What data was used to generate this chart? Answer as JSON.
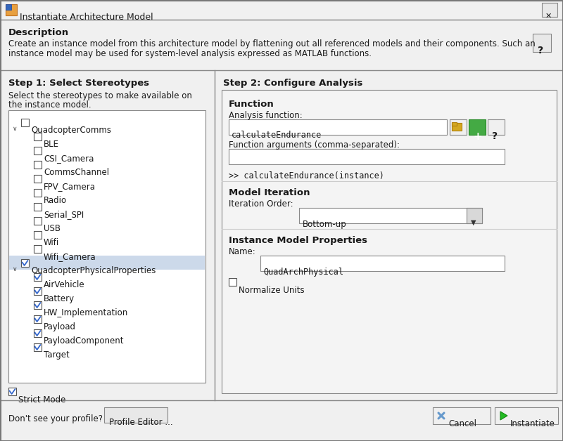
{
  "title": "Instantiate Architecture Model",
  "bg_outer": "#d4d0c8",
  "bg_dialog": "#f0f0f0",
  "bg_white": "#ffffff",
  "bg_titlebar": "#f0f0f0",
  "bg_section": "#ececec",
  "bg_highlight": "#ccd9ea",
  "border_dark": "#808080",
  "border_mid": "#a0a0a0",
  "border_light": "#c8c8c8",
  "text_black": "#000000",
  "text_dark": "#1a1a1a",
  "description_line1": "Create an instance model from this architecture model by flattening out all referenced models and their components. Such an",
  "description_line2": "instance model may be used for system-level analysis expressed as MATLAB functions.",
  "step1_title": "Step 1: Select Stereotypes",
  "step1_subtitle1": "Select the stereotypes to make available on",
  "step1_subtitle2": "the instance model.",
  "step2_title": "Step 2: Configure Analysis",
  "fn_section": "Function",
  "fn_label": "Analysis function:",
  "fn_value": "calculateEndurance",
  "fn_args_label": "Function arguments (comma-separated):",
  "fn_call": ">> calculateEndurance(instance)",
  "iter_section": "Model Iteration",
  "iter_label": "Iteration Order:",
  "iter_value": "Bottom-up",
  "inst_section": "Instance Model Properties",
  "name_label": "Name:",
  "name_value": "QuadArchPhysical",
  "normalize_label": "Normalize Units",
  "strict_label": "Strict Mode",
  "dont_see": "Don't see your profile?",
  "profile_btn": "Profile Editor ...",
  "cancel_btn": "Cancel",
  "instantiate_btn": "Instantiate",
  "tree_items": [
    {
      "level": 0,
      "text": "QuadcopterComms",
      "checked": false,
      "expanded": true,
      "highlighted": false
    },
    {
      "level": 1,
      "text": "BLE",
      "checked": false,
      "highlighted": false
    },
    {
      "level": 1,
      "text": "CSI_Camera",
      "checked": false,
      "highlighted": false
    },
    {
      "level": 1,
      "text": "CommsChannel",
      "checked": false,
      "highlighted": false
    },
    {
      "level": 1,
      "text": "FPV_Camera",
      "checked": false,
      "highlighted": false
    },
    {
      "level": 1,
      "text": "Radio",
      "checked": false,
      "highlighted": false
    },
    {
      "level": 1,
      "text": "Serial_SPI",
      "checked": false,
      "highlighted": false
    },
    {
      "level": 1,
      "text": "USB",
      "checked": false,
      "highlighted": false
    },
    {
      "level": 1,
      "text": "Wifi",
      "checked": false,
      "highlighted": false
    },
    {
      "level": 1,
      "text": "Wifi_Camera",
      "checked": false,
      "highlighted": false
    },
    {
      "level": 0,
      "text": "QuadcopterPhysicalProperties",
      "checked": true,
      "expanded": true,
      "highlighted": true
    },
    {
      "level": 1,
      "text": "AirVehicle",
      "checked": true,
      "highlighted": false
    },
    {
      "level": 1,
      "text": "Battery",
      "checked": true,
      "highlighted": false
    },
    {
      "level": 1,
      "text": "HW_Implementation",
      "checked": true,
      "highlighted": false
    },
    {
      "level": 1,
      "text": "Payload",
      "checked": true,
      "highlighted": false
    },
    {
      "level": 1,
      "text": "PayloadComponent",
      "checked": true,
      "highlighted": false
    },
    {
      "level": 1,
      "text": "Target",
      "checked": true,
      "highlighted": false
    }
  ]
}
